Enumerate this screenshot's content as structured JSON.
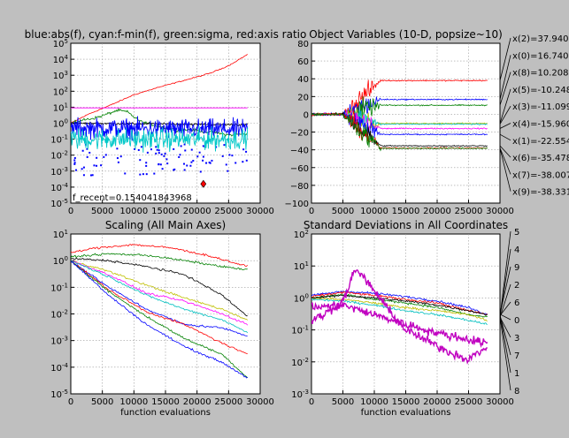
{
  "chart_data": [
    {
      "id": "fitness",
      "type": "line",
      "title": "blue:abs(f), cyan:f-min(f), green:sigma, red:axis ratio",
      "xlabel": "",
      "ylabel": "",
      "xlim": [
        0,
        30000
      ],
      "ylim": [
        1e-05,
        100000.0
      ],
      "yscale": "log",
      "grid": true,
      "x_ticks": [
        "0",
        "5000",
        "10000",
        "15000",
        "20000",
        "25000",
        "30000"
      ],
      "y_ticks": [
        "10^-5",
        "10^-4",
        "10^-3",
        "10^-2",
        "10^-1",
        "10^0",
        "10^1",
        "10^2",
        "10^3",
        "10^4",
        "10^5"
      ],
      "annotation": "f_recent=0.154041843968",
      "best_marker": {
        "x": 21000,
        "y": 0.00016,
        "color": "#ff0000"
      },
      "series": [
        {
          "color": "#ff0000",
          "x": [
            0,
            3000,
            6000,
            10000,
            14000,
            18000,
            22000,
            25000,
            28000
          ],
          "y": [
            1,
            4,
            12,
            60,
            180,
            480,
            1300,
            4000,
            20000
          ]
        },
        {
          "color": "#008000",
          "x": [
            0,
            2000,
            4000,
            6000,
            7500,
            9000,
            10000,
            11000,
            13000,
            15000,
            17000,
            19000,
            21000,
            23000,
            25000,
            28000
          ],
          "y": [
            1,
            1.6,
            2.2,
            4,
            6.5,
            5,
            2.5,
            1.3,
            0.8,
            0.5,
            0.35,
            0.4,
            0.3,
            0.25,
            0.18,
            0.22
          ]
        },
        {
          "color": "#ff00ff",
          "x": [
            0,
            28000
          ],
          "y": [
            9,
            9
          ]
        },
        {
          "color": "#000000",
          "x": [
            0,
            28000
          ],
          "y": [
            1.0,
            0.8
          ]
        },
        {
          "color": "#0000ff",
          "x": [
            0,
            28000
          ],
          "y": [
            0.5,
            0.4
          ]
        },
        {
          "color": "#00c8c8",
          "x": [
            0,
            28000
          ],
          "y": [
            0.1,
            0.1
          ]
        }
      ]
    },
    {
      "id": "objvars",
      "type": "line",
      "title": "Object Variables (10-D, popsize~10)",
      "xlabel": "",
      "ylabel": "",
      "xlim": [
        0,
        30000
      ],
      "ylim": [
        -100,
        80
      ],
      "yscale": "linear",
      "grid": true,
      "x_ticks": [
        "0",
        "5000",
        "10000",
        "15000",
        "20000",
        "25000",
        "30000"
      ],
      "y_ticks": [
        "80",
        "60",
        "40",
        "20",
        "0",
        "−20",
        "−40",
        "−60",
        "−80",
        "−100"
      ],
      "series": [
        {
          "name": "x(2)=37.9409",
          "color": "#ff0000",
          "final": 38
        },
        {
          "name": "x(0)=16.7407",
          "color": "#0000ff",
          "final": 16.7
        },
        {
          "name": "x(8)=10.2087",
          "color": "#008000",
          "final": 10.2
        },
        {
          "name": "x(5)=-10.2484",
          "color": "#bfbf00",
          "final": -10.2
        },
        {
          "name": "x(3)=-11.0994",
          "color": "#00bfbf",
          "final": -11.1
        },
        {
          "name": "x(4)=-15.9603",
          "color": "#ff00ff",
          "final": -16
        },
        {
          "name": "x(1)=-22.5541",
          "color": "#0000ff",
          "final": -22.6
        },
        {
          "name": "x(6)=-35.4785",
          "color": "#000000",
          "final": -35.5
        },
        {
          "name": "x(7)=-38.0071",
          "color": "#ff0000",
          "final": -38
        },
        {
          "name": "x(9)=-38.3311",
          "color": "#008000",
          "final": -38.3
        }
      ]
    },
    {
      "id": "scaling",
      "type": "line",
      "title": "Scaling (All Main Axes)",
      "xlabel": "",
      "ylabel": "",
      "xlim": [
        0,
        30000
      ],
      "ylim": [
        1e-05,
        10.0
      ],
      "yscale": "log",
      "grid": true,
      "x_ticks": [
        "0",
        "5000",
        "10000",
        "15000",
        "20000",
        "25000",
        "30000"
      ],
      "y_ticks": [
        "10^-5",
        "10^-4",
        "10^-3",
        "10^-2",
        "10^-1",
        "10^0",
        "10^1"
      ],
      "series": [
        {
          "color": "#ff0000",
          "x": [
            0,
            4000,
            10000,
            16000,
            22000,
            28000
          ],
          "y": [
            2,
            3,
            4,
            3,
            1.5,
            0.6
          ]
        },
        {
          "color": "#008000",
          "x": [
            0,
            6000,
            12000,
            18000,
            24000,
            28000
          ],
          "y": [
            1.4,
            1.8,
            1.6,
            1.0,
            0.6,
            0.45
          ]
        },
        {
          "color": "#000000",
          "x": [
            0,
            6000,
            12000,
            18000,
            24000,
            28000
          ],
          "y": [
            1.2,
            1.0,
            0.6,
            0.3,
            0.05,
            0.008
          ]
        },
        {
          "color": "#bfbf00",
          "x": [
            0,
            6000,
            12000,
            18000,
            24000,
            28000
          ],
          "y": [
            1.0,
            0.4,
            0.12,
            0.04,
            0.015,
            0.006
          ]
        },
        {
          "color": "#ff00ff",
          "x": [
            0,
            6000,
            12000,
            18000,
            24000,
            28000
          ],
          "y": [
            1.0,
            0.3,
            0.06,
            0.03,
            0.01,
            0.004
          ]
        },
        {
          "color": "#00bfbf",
          "x": [
            0,
            6000,
            12000,
            18000,
            24000,
            28000
          ],
          "y": [
            1.0,
            0.25,
            0.05,
            0.015,
            0.006,
            0.002
          ]
        },
        {
          "color": "#0000ff",
          "x": [
            0,
            6000,
            12000,
            18000,
            24000,
            28000
          ],
          "y": [
            1.0,
            0.1,
            0.015,
            0.004,
            0.003,
            0.0015
          ]
        },
        {
          "color": "#ff0000",
          "x": [
            0,
            6000,
            12000,
            18000,
            24000,
            28000
          ],
          "y": [
            1.0,
            0.08,
            0.012,
            0.004,
            0.0008,
            0.0003
          ]
        },
        {
          "color": "#008000",
          "x": [
            0,
            6000,
            12000,
            18000,
            24000,
            28000
          ],
          "y": [
            1.0,
            0.07,
            0.008,
            0.0012,
            0.0003,
            4e-05
          ]
        },
        {
          "color": "#0000ff",
          "x": [
            0,
            6000,
            12000,
            18000,
            24000,
            28000
          ],
          "y": [
            1.0,
            0.05,
            0.004,
            0.0006,
            0.00015,
            4e-05
          ]
        }
      ]
    },
    {
      "id": "stds",
      "type": "line",
      "title": "Standard Deviations in All Coordinates",
      "xlabel": "function evaluations",
      "ylabel": "",
      "xlim": [
        0,
        30000
      ],
      "ylim": [
        0.001,
        100.0
      ],
      "yscale": "log",
      "grid": true,
      "x_ticks": [
        "0",
        "5000",
        "10000",
        "15000",
        "20000",
        "25000",
        "30000"
      ],
      "y_ticks": [
        "10^-3",
        "10^-2",
        "10^-1",
        "10^0",
        "10^1",
        "10^2"
      ],
      "side_labels": [
        "5",
        "4",
        "9",
        "2",
        "6",
        "0",
        "3",
        "7",
        "1",
        "8"
      ],
      "series": [
        {
          "color": "#0000ff",
          "x": [
            0,
            5000,
            10000,
            15000,
            20000,
            25000,
            28000
          ],
          "y": [
            1.2,
            1.6,
            1.4,
            1.1,
            0.8,
            0.5,
            0.3
          ]
        },
        {
          "color": "#008000",
          "x": [
            0,
            5000,
            10000,
            15000,
            20000,
            25000,
            28000
          ],
          "y": [
            1.0,
            1.3,
            0.9,
            0.7,
            0.5,
            0.3,
            0.25
          ]
        },
        {
          "color": "#ff0000",
          "x": [
            0,
            5000,
            10000,
            15000,
            20000,
            25000,
            28000
          ],
          "y": [
            1.1,
            1.5,
            1.2,
            0.9,
            0.7,
            0.4,
            0.3
          ]
        },
        {
          "color": "#00bfbf",
          "x": [
            0,
            5000,
            10000,
            15000,
            20000,
            25000,
            28000
          ],
          "y": [
            0.9,
            0.8,
            0.6,
            0.4,
            0.3,
            0.2,
            0.15
          ]
        },
        {
          "color": "#bfbf00",
          "x": [
            0,
            5000,
            10000,
            15000,
            20000,
            25000,
            28000
          ],
          "y": [
            1.0,
            0.9,
            0.7,
            0.5,
            0.4,
            0.3,
            0.2
          ]
        },
        {
          "color": "#000000",
          "x": [
            0,
            5000,
            10000,
            15000,
            20000,
            25000,
            28000
          ],
          "y": [
            1.0,
            1.2,
            1.0,
            0.8,
            0.6,
            0.4,
            0.3
          ]
        },
        {
          "color": "#c000c0",
          "x": [
            0,
            2000,
            5000,
            7000,
            9000,
            12000,
            15000,
            18000,
            22000,
            25000,
            28000
          ],
          "y": [
            0.2,
            0.3,
            0.8,
            8,
            3,
            0.5,
            0.1,
            0.05,
            0.02,
            0.012,
            0.03
          ]
        },
        {
          "color": "#c000c0",
          "x": [
            0,
            5000,
            10000,
            15000,
            20000,
            25000,
            28000
          ],
          "y": [
            0.5,
            0.6,
            0.3,
            0.15,
            0.08,
            0.05,
            0.04
          ]
        }
      ]
    }
  ],
  "shared": {
    "xlabel_bottom": "function evaluations"
  }
}
